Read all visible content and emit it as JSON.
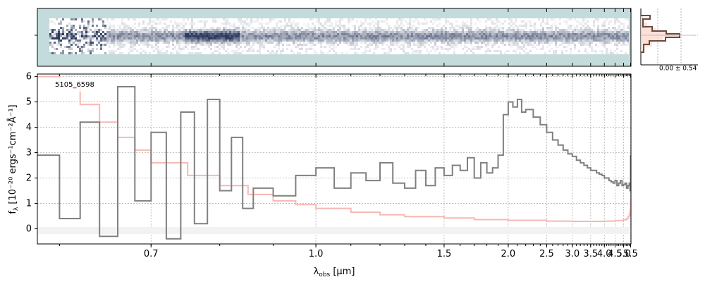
{
  "figure": {
    "object_id": "5105_6598",
    "xlabel": "λ",
    "xlabel_sub": "obs",
    "xlabel_unit": "[μm]",
    "ylabel_main": "f",
    "ylabel_sub": "λ",
    "ylabel_units": "[10⁻²⁰ ergs⁻¹cm⁻²Å⁻¹]",
    "hist_label": "0.00 ± 0.54"
  },
  "colors": {
    "spectrum": "#808080",
    "error": "#f7b8b4",
    "twod_background": "#c3dcdb",
    "twod_trace": "#2c3a5e",
    "hist_line": "#6b4a3c",
    "hist_fill": "#fcd9cf",
    "grid": "#b0b0b0"
  },
  "chart_data": [
    {
      "type": "line",
      "name": "1D spectrum",
      "xscale": "reciprocal",
      "xlim": [
        0.58,
        5.53
      ],
      "ylim": [
        -0.6,
        6.1
      ],
      "xticks_major": [
        0.7,
        1.0,
        1.5,
        2.0,
        2.5,
        3.0,
        3.5,
        4.0,
        4.5,
        5.0,
        5.5
      ],
      "xtick_labels": [
        "0.7",
        "1.0",
        "1.5",
        "2.0",
        "2.5",
        "3.0",
        "3.5",
        "4.0",
        "4.5",
        "5.0",
        "5.5"
      ],
      "yticks": [
        0,
        1,
        2,
        3,
        4,
        5,
        6
      ],
      "ytick_labels": [
        "0",
        "1",
        "2",
        "3",
        "4",
        "5",
        "6"
      ],
      "grid": true,
      "series": [
        {
          "role": "flux",
          "x": [
            0.58,
            0.6,
            0.62,
            0.64,
            0.66,
            0.68,
            0.7,
            0.72,
            0.74,
            0.76,
            0.78,
            0.8,
            0.82,
            0.84,
            0.86,
            0.9,
            0.95,
            1.0,
            1.05,
            1.1,
            1.15,
            1.2,
            1.25,
            1.3,
            1.35,
            1.4,
            1.45,
            1.5,
            1.55,
            1.6,
            1.65,
            1.7,
            1.75,
            1.8,
            1.85,
            1.9,
            1.95,
            2.0,
            2.05,
            2.1,
            2.15,
            2.2,
            2.3,
            2.4,
            2.5,
            2.6,
            2.7,
            2.8,
            2.9,
            3.0,
            3.1,
            3.2,
            3.3,
            3.4,
            3.5,
            3.6,
            3.7,
            3.8,
            3.9,
            4.0,
            4.1,
            4.2,
            4.3,
            4.4,
            4.5,
            4.6,
            4.7,
            4.8,
            4.9,
            5.0,
            5.1,
            5.2,
            5.3,
            5.4,
            5.45,
            5.5
          ],
          "y": [
            2.9,
            0.4,
            4.2,
            -0.3,
            5.6,
            1.1,
            3.8,
            -0.4,
            4.6,
            0.2,
            5.1,
            1.5,
            3.6,
            0.8,
            1.6,
            1.3,
            2.1,
            2.4,
            1.6,
            2.2,
            1.9,
            2.6,
            1.8,
            1.6,
            2.3,
            1.7,
            2.4,
            2.1,
            2.5,
            2.3,
            2.8,
            2.0,
            2.6,
            2.2,
            2.4,
            2.9,
            4.5,
            5.0,
            4.8,
            5.1,
            4.6,
            4.7,
            4.4,
            4.1,
            3.8,
            3.5,
            3.3,
            3.1,
            2.95,
            2.85,
            2.7,
            2.6,
            2.5,
            2.4,
            2.3,
            2.3,
            2.2,
            2.15,
            2.1,
            2.0,
            2.0,
            1.9,
            1.85,
            1.8,
            1.9,
            1.7,
            1.8,
            1.9,
            1.7,
            1.75,
            1.8,
            1.6,
            1.7,
            1.8,
            1.5,
            2.9
          ]
        },
        {
          "role": "uncertainty",
          "x": [
            0.58,
            0.6,
            0.62,
            0.64,
            0.66,
            0.68,
            0.7,
            0.75,
            0.8,
            0.85,
            0.9,
            0.95,
            1.0,
            1.1,
            1.2,
            1.3,
            1.5,
            1.7,
            2.0,
            2.5,
            3.0,
            3.5,
            4.0,
            4.5,
            5.0,
            5.2,
            5.3,
            5.4,
            5.45,
            5.5
          ],
          "y": [
            6.0,
            5.6,
            4.9,
            4.2,
            3.6,
            3.1,
            2.6,
            2.1,
            1.7,
            1.35,
            1.1,
            0.95,
            0.8,
            0.65,
            0.55,
            0.48,
            0.42,
            0.36,
            0.33,
            0.3,
            0.29,
            0.29,
            0.3,
            0.32,
            0.35,
            0.4,
            0.47,
            0.57,
            0.72,
            1.15
          ]
        }
      ]
    }
  ]
}
